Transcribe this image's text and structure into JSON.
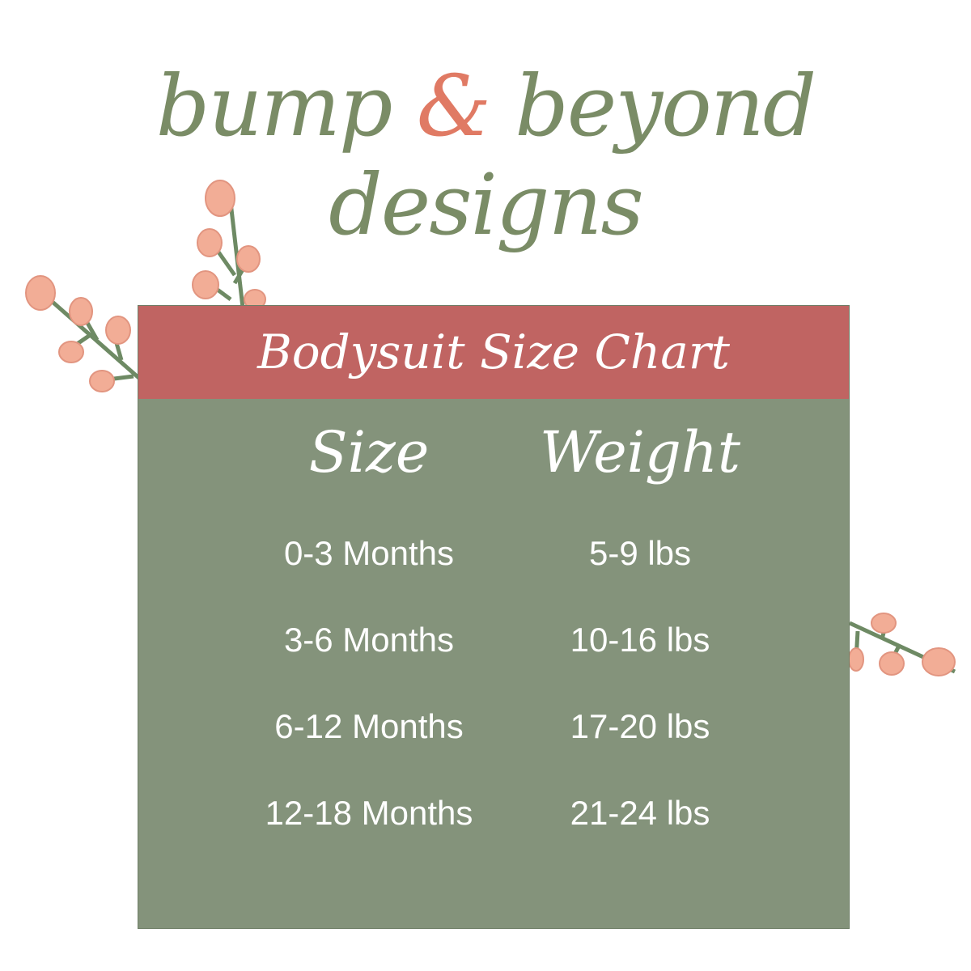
{
  "brand": {
    "part1": "bump ",
    "ampersand": "&",
    "part2": " beyond designs"
  },
  "chart": {
    "title": "Bodysuit Size Chart",
    "columns": [
      "Size",
      "Weight"
    ],
    "rows": [
      {
        "size": "0-3 Months",
        "weight": "5-9 lbs"
      },
      {
        "size": "3-6 Months",
        "weight": "10-16 lbs"
      },
      {
        "size": "6-12 Months",
        "weight": "17-20 lbs"
      },
      {
        "size": "12-18 Months",
        "weight": "21-24 lbs"
      }
    ]
  },
  "colors": {
    "brand_green": "#7a8c66",
    "accent_coral": "#e07a64",
    "header_red": "#c06462",
    "panel_green": "#84937b",
    "berry": "#f2ad96"
  }
}
